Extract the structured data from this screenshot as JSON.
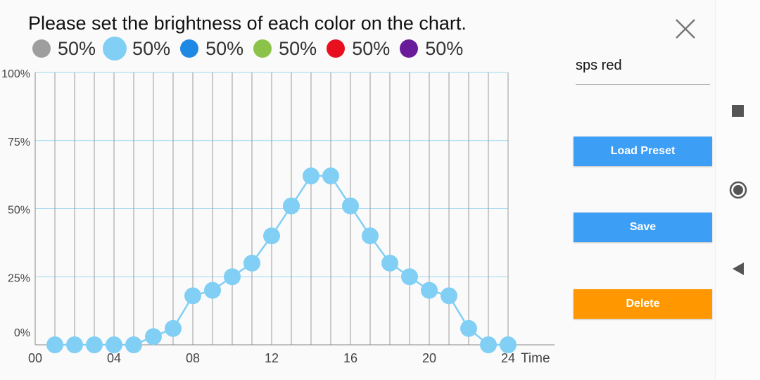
{
  "prompt": "Please set the brightness of each color on the chart.",
  "legend": [
    {
      "color": "#9e9e9e",
      "value": "50%",
      "selected": false
    },
    {
      "color": "#81cff4",
      "value": "50%",
      "selected": true
    },
    {
      "color": "#1e88e5",
      "value": "50%",
      "selected": false
    },
    {
      "color": "#8bc34a",
      "value": "50%",
      "selected": false
    },
    {
      "color": "#e8101e",
      "value": "50%",
      "selected": false
    },
    {
      "color": "#6a1b9a",
      "value": "50%",
      "selected": false
    }
  ],
  "preset_name": "sps red",
  "buttons": {
    "load": "Load Preset",
    "save": "Save",
    "delete": "Delete"
  },
  "colors": {
    "series": "#81cff4",
    "primary_button": "#3d9ef5",
    "delete_button": "#ff9800"
  },
  "icons": {
    "close": "close-icon",
    "recents": "square-icon",
    "home": "circle-icon",
    "back": "triangle-back-icon"
  },
  "chart_data": {
    "type": "line",
    "xlabel": "Time",
    "ylim": [
      0,
      100
    ],
    "xlim": [
      0,
      24
    ],
    "y_ticks": [
      "0%",
      "25%",
      "50%",
      "75%",
      "100%"
    ],
    "x_ticks": [
      "00",
      "04",
      "08",
      "12",
      "16",
      "20",
      "24"
    ],
    "series": [
      {
        "x": [
          1,
          2,
          3,
          4,
          5,
          6,
          7,
          8,
          9,
          10,
          11,
          12,
          13,
          14,
          15,
          16,
          17,
          18,
          19,
          20,
          21,
          22,
          23,
          24
        ],
        "values": [
          0,
          0,
          0,
          0,
          0,
          3,
          6,
          18,
          20,
          25,
          30,
          40,
          51,
          62,
          62,
          51,
          40,
          30,
          25,
          20,
          18,
          6,
          0,
          0
        ]
      }
    ]
  }
}
